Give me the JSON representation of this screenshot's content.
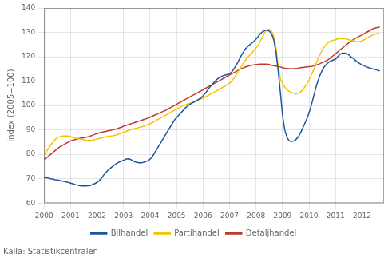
{
  "chart_data": {
    "type": "line",
    "ylabel": "Index (2005=100)",
    "caption": "Källa: Statistikcentralen",
    "xlim": [
      2000.0,
      2012.83
    ],
    "ylim": [
      60,
      140
    ],
    "xticks": [
      2000,
      2001,
      2002,
      2003,
      2004,
      2005,
      2006,
      2007,
      2008,
      2009,
      2010,
      2011,
      2012
    ],
    "yticks": [
      60,
      70,
      80,
      90,
      100,
      110,
      120,
      130,
      140
    ],
    "grid": true,
    "legend": "bottom",
    "x": [
      2000.0,
      2000.083,
      2000.167,
      2000.25,
      2000.333,
      2000.417,
      2000.5,
      2000.583,
      2000.667,
      2000.75,
      2000.833,
      2000.917,
      2001.0,
      2001.083,
      2001.167,
      2001.25,
      2001.333,
      2001.417,
      2001.5,
      2001.583,
      2001.667,
      2001.75,
      2001.833,
      2001.917,
      2002.0,
      2002.083,
      2002.167,
      2002.25,
      2002.333,
      2002.417,
      2002.5,
      2002.583,
      2002.667,
      2002.75,
      2002.833,
      2002.917,
      2003.0,
      2003.083,
      2003.167,
      2003.25,
      2003.333,
      2003.417,
      2003.5,
      2003.583,
      2003.667,
      2003.75,
      2003.833,
      2003.917,
      2004.0,
      2004.083,
      2004.167,
      2004.25,
      2004.333,
      2004.417,
      2004.5,
      2004.583,
      2004.667,
      2004.75,
      2004.833,
      2004.917,
      2005.0,
      2005.083,
      2005.167,
      2005.25,
      2005.333,
      2005.417,
      2005.5,
      2005.583,
      2005.667,
      2005.75,
      2005.833,
      2005.917,
      2006.0,
      2006.083,
      2006.167,
      2006.25,
      2006.333,
      2006.417,
      2006.5,
      2006.583,
      2006.667,
      2006.75,
      2006.833,
      2006.917,
      2007.0,
      2007.083,
      2007.167,
      2007.25,
      2007.333,
      2007.417,
      2007.5,
      2007.583,
      2007.667,
      2007.75,
      2007.833,
      2007.917,
      2008.0,
      2008.083,
      2008.167,
      2008.25,
      2008.333,
      2008.417,
      2008.5,
      2008.583,
      2008.667,
      2008.75,
      2008.833,
      2008.917,
      2009.0,
      2009.083,
      2009.167,
      2009.25,
      2009.333,
      2009.417,
      2009.5,
      2009.583,
      2009.667,
      2009.75,
      2009.833,
      2009.917,
      2010.0,
      2010.083,
      2010.167,
      2010.25,
      2010.333,
      2010.417,
      2010.5,
      2010.583,
      2010.667,
      2010.75,
      2010.833,
      2010.917,
      2011.0,
      2011.083,
      2011.167,
      2011.25,
      2011.333,
      2011.417,
      2011.5,
      2011.583,
      2011.667,
      2011.75,
      2011.833,
      2011.917,
      2012.0,
      2012.083,
      2012.167,
      2012.25,
      2012.333,
      2012.417,
      2012.5,
      2012.583,
      2012.667
    ],
    "series": [
      {
        "name": "Bilhandel",
        "color": "#1a56a0",
        "values": [
          70.5,
          70.4,
          70.2,
          70.0,
          69.8,
          69.6,
          69.5,
          69.3,
          69.1,
          68.9,
          68.7,
          68.5,
          68.2,
          67.9,
          67.6,
          67.4,
          67.2,
          67.0,
          67.0,
          67.0,
          67.1,
          67.3,
          67.6,
          68.0,
          68.5,
          69.2,
          70.2,
          71.5,
          72.5,
          73.5,
          74.3,
          75.0,
          75.7,
          76.3,
          76.8,
          77.2,
          77.5,
          78.0,
          78.2,
          78.0,
          77.5,
          77.0,
          76.7,
          76.5,
          76.5,
          76.7,
          77.0,
          77.4,
          78.0,
          79.0,
          80.5,
          82.0,
          83.5,
          85.0,
          86.5,
          88.0,
          89.5,
          91.0,
          92.5,
          94.0,
          95.0,
          96.0,
          97.0,
          98.0,
          99.0,
          99.8,
          100.5,
          101.0,
          101.5,
          102.0,
          102.5,
          103.0,
          104.0,
          105.0,
          106.2,
          107.5,
          108.5,
          109.5,
          110.5,
          111.2,
          111.8,
          112.2,
          112.5,
          112.7,
          113.0,
          113.8,
          115.0,
          116.5,
          118.2,
          120.0,
          121.5,
          123.0,
          124.0,
          124.8,
          125.5,
          126.3,
          127.2,
          128.3,
          129.5,
          130.3,
          130.8,
          131.0,
          130.5,
          129.5,
          127.0,
          122.0,
          114.5,
          105.5,
          96.0,
          90.0,
          87.0,
          85.5,
          85.2,
          85.5,
          86.0,
          87.0,
          88.5,
          90.5,
          92.5,
          94.5,
          97.0,
          100.0,
          103.5,
          107.0,
          110.0,
          112.5,
          114.5,
          116.0,
          117.0,
          117.8,
          118.3,
          118.7,
          119.0,
          120.0,
          121.0,
          121.5,
          121.5,
          121.3,
          120.8,
          120.0,
          119.3,
          118.5,
          117.8,
          117.2,
          116.7,
          116.3,
          115.8,
          115.5,
          115.2,
          115.0,
          114.8,
          114.5,
          114.2
        ]
      },
      {
        "name": "Partihandel",
        "color": "#f5c400",
        "values": [
          80.0,
          81.0,
          82.5,
          83.8,
          85.0,
          86.0,
          86.8,
          87.2,
          87.5,
          87.5,
          87.5,
          87.5,
          87.3,
          87.0,
          86.7,
          86.5,
          86.3,
          86.2,
          86.0,
          85.8,
          85.7,
          85.7,
          85.8,
          86.0,
          86.3,
          86.5,
          86.7,
          87.0,
          87.2,
          87.3,
          87.5,
          87.6,
          87.8,
          88.0,
          88.3,
          88.7,
          89.0,
          89.3,
          89.7,
          90.0,
          90.3,
          90.5,
          90.7,
          91.0,
          91.2,
          91.5,
          91.8,
          92.2,
          92.5,
          93.0,
          93.5,
          94.0,
          94.5,
          95.0,
          95.5,
          96.0,
          96.5,
          97.0,
          97.5,
          98.0,
          98.5,
          99.0,
          99.5,
          100.0,
          100.3,
          100.6,
          100.9,
          101.2,
          101.5,
          101.8,
          102.2,
          102.6,
          103.0,
          103.5,
          104.0,
          104.5,
          105.0,
          105.5,
          106.0,
          106.5,
          107.0,
          107.5,
          108.0,
          108.5,
          109.2,
          110.0,
          111.2,
          112.5,
          114.0,
          115.5,
          117.0,
          118.3,
          119.5,
          120.5,
          121.5,
          122.5,
          123.5,
          124.8,
          126.5,
          128.3,
          130.0,
          131.0,
          131.3,
          130.5,
          128.5,
          124.0,
          116.5,
          111.0,
          109.0,
          107.5,
          106.5,
          105.8,
          105.3,
          105.0,
          104.8,
          105.0,
          105.5,
          106.3,
          107.5,
          108.8,
          110.5,
          112.5,
          114.5,
          116.8,
          119.0,
          121.0,
          122.8,
          124.2,
          125.2,
          126.0,
          126.5,
          126.8,
          127.0,
          127.3,
          127.5,
          127.5,
          127.5,
          127.3,
          127.0,
          126.8,
          126.5,
          126.3,
          126.2,
          126.3,
          126.5,
          127.0,
          127.5,
          128.0,
          128.5,
          129.0,
          129.3,
          129.5,
          129.5
        ]
      },
      {
        "name": "Detaljhandel",
        "color": "#c0392b",
        "values": [
          78.0,
          78.5,
          79.2,
          80.0,
          80.8,
          81.5,
          82.2,
          83.0,
          83.5,
          84.0,
          84.5,
          85.0,
          85.5,
          85.8,
          86.0,
          86.3,
          86.5,
          86.7,
          86.8,
          87.0,
          87.2,
          87.5,
          87.8,
          88.2,
          88.5,
          88.8,
          89.0,
          89.2,
          89.4,
          89.6,
          89.8,
          90.0,
          90.2,
          90.5,
          90.8,
          91.1,
          91.5,
          91.8,
          92.1,
          92.4,
          92.7,
          93.0,
          93.3,
          93.6,
          93.9,
          94.2,
          94.5,
          94.8,
          95.2,
          95.6,
          96.0,
          96.4,
          96.8,
          97.2,
          97.6,
          98.0,
          98.5,
          99.0,
          99.5,
          100.0,
          100.5,
          101.0,
          101.5,
          102.0,
          102.5,
          103.0,
          103.5,
          104.0,
          104.5,
          105.0,
          105.5,
          106.0,
          106.5,
          107.0,
          107.5,
          108.0,
          108.5,
          109.0,
          109.5,
          110.0,
          110.5,
          111.0,
          111.5,
          112.0,
          112.5,
          113.0,
          113.5,
          114.0,
          114.5,
          115.0,
          115.4,
          115.7,
          116.0,
          116.3,
          116.5,
          116.7,
          116.8,
          116.9,
          117.0,
          117.0,
          117.0,
          117.0,
          116.8,
          116.5,
          116.3,
          116.2,
          116.0,
          115.8,
          115.5,
          115.3,
          115.2,
          115.1,
          115.0,
          115.1,
          115.2,
          115.3,
          115.5,
          115.6,
          115.7,
          115.8,
          115.9,
          116.0,
          116.2,
          116.5,
          116.8,
          117.2,
          117.6,
          118.0,
          118.5,
          119.0,
          119.8,
          120.5,
          121.2,
          122.0,
          122.8,
          123.5,
          124.2,
          125.0,
          125.7,
          126.3,
          127.0,
          127.5,
          128.0,
          128.5,
          129.0,
          129.5,
          130.0,
          130.5,
          131.0,
          131.5,
          131.8,
          132.0,
          132.2
        ]
      }
    ]
  }
}
